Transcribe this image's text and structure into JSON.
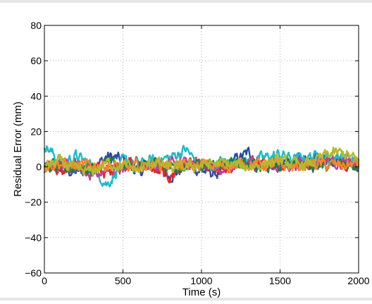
{
  "chart_data": {
    "type": "line",
    "xlabel": "Time (s)",
    "ylabel": "Residual Error (mm)",
    "xlim": [
      0,
      2000
    ],
    "ylim": [
      -60,
      80
    ],
    "xticks": [
      0,
      500,
      1000,
      1500,
      2000
    ],
    "yticks": [
      -60,
      -40,
      -20,
      0,
      20,
      40,
      60,
      80
    ],
    "xtick_labels": [
      "0",
      "500",
      "1000",
      "1500",
      "2000"
    ],
    "ytick_labels": [
      "−60",
      "−40",
      "−20",
      "0",
      "20",
      "40",
      "60",
      "80"
    ],
    "grid": true,
    "legend": "none",
    "x": [
      0,
      100,
      200,
      300,
      400,
      500,
      600,
      700,
      800,
      900,
      1000,
      1100,
      1200,
      1300,
      1400,
      1500,
      1600,
      1700,
      1800,
      1900,
      2000
    ],
    "series": [
      {
        "color": "#2b4ba3",
        "values": [
          0,
          -2,
          -3,
          -2,
          6,
          4,
          -3,
          1,
          -5,
          0,
          -2,
          -4,
          3,
          8,
          0,
          2,
          3,
          4,
          5,
          4,
          2
        ]
      },
      {
        "color": "#e8262b",
        "values": [
          2,
          -3,
          0,
          1,
          -4,
          2,
          3,
          -2,
          -6,
          2,
          0,
          -3,
          0,
          2,
          3,
          1,
          3,
          2,
          4,
          3,
          1
        ]
      },
      {
        "color": "#1dbcc6",
        "values": [
          13,
          2,
          6,
          1,
          -10,
          3,
          1,
          4,
          5,
          10,
          -1,
          2,
          3,
          3,
          5,
          7,
          4,
          6,
          5,
          7,
          3
        ]
      },
      {
        "color": "#c03c9c",
        "values": [
          -2,
          1,
          2,
          -4,
          0,
          -2,
          2,
          0,
          3,
          2,
          1,
          0,
          -1,
          2,
          1,
          0,
          2,
          3,
          4,
          2,
          1
        ]
      },
      {
        "color": "#1f7d4a",
        "values": [
          0,
          1,
          -1,
          0,
          2,
          0,
          1,
          2,
          0,
          1,
          0,
          1,
          2,
          1,
          0,
          1,
          2,
          1,
          0,
          2,
          1
        ]
      },
      {
        "color": "#f5872a",
        "values": [
          1,
          2,
          0,
          1,
          1,
          -1,
          0,
          2,
          1,
          0,
          1,
          0,
          1,
          2,
          1,
          1,
          0,
          2,
          1,
          1,
          2
        ]
      },
      {
        "color": "#b5b92b",
        "values": [
          0,
          3,
          -2,
          -3,
          2,
          1,
          -2,
          3,
          -1,
          0,
          1,
          2,
          1,
          0,
          2,
          3,
          1,
          2,
          7,
          8,
          3
        ]
      }
    ]
  }
}
